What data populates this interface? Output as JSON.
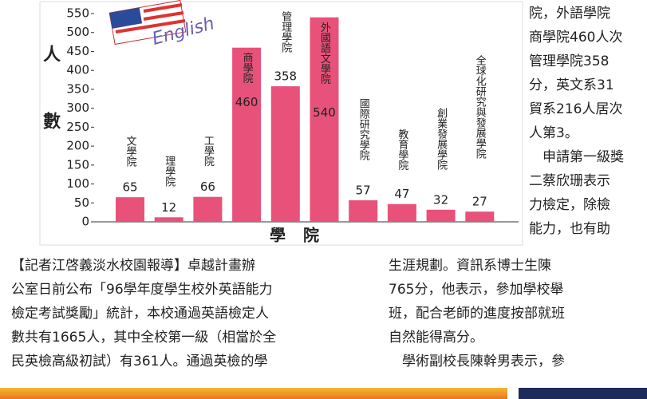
{
  "chart_data": {
    "type": "bar",
    "annotation": "English",
    "y_label": "人數",
    "x_label": "學院",
    "categories": [
      "文學院",
      "理學院",
      "工學院",
      "商學院",
      "管理學院",
      "外國語文學院",
      "國際研究學院",
      "教育學院",
      "創業發展學院",
      "全球化研究與發展學院"
    ],
    "values": [
      65,
      12,
      66,
      460,
      358,
      540,
      57,
      47,
      32,
      27
    ],
    "color": "#e8527a",
    "ylim": [
      0,
      550
    ],
    "yticks": [
      0,
      50,
      100,
      150,
      200,
      250,
      300,
      350,
      400,
      450,
      500,
      550
    ]
  },
  "article": {
    "right_top": [
      "院，外語學院",
      "商學院460人次",
      "管理學院358",
      "分，英文系31",
      "貿系216人居次",
      "人第3。",
      "　申請第一級獎",
      "二蔡欣珊表示",
      "力檢定，除檢",
      "能力，也有助"
    ],
    "left": [
      "【記者江啓義淡水校園報導】卓越計畫辦",
      "公室日前公布「96學年度學生校外英語能力",
      "檢定考試獎勵」統計，本校通過英語檢定人",
      "數共有1665人，其中全校第一級（相當於全",
      "民英檢高級初試）有361人。通過英檢的學"
    ],
    "right_bottom": [
      "生涯規劃。資訊系博士生陳",
      "765分，他表示，參加學校舉",
      "班，配合老師的進度按部就班",
      "自然能得高分。",
      "　學術副校長陳幹男表示，參"
    ]
  }
}
